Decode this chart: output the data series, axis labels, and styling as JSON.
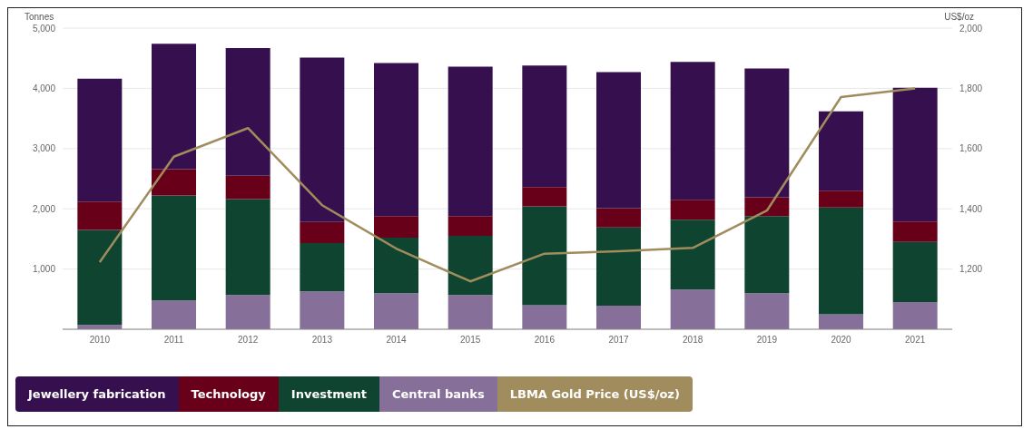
{
  "chart_data": {
    "type": "bar",
    "stacked": true,
    "ylabel": "Tonnes",
    "y2label": "US$/oz",
    "categories": [
      "2010",
      "2011",
      "2012",
      "2013",
      "2014",
      "2015",
      "2016",
      "2017",
      "2018",
      "2019",
      "2020",
      "2021"
    ],
    "series": [
      {
        "name": "Central banks",
        "color": "#86709a",
        "values": [
          70,
          480,
          570,
          630,
          600,
          570,
          400,
          390,
          660,
          600,
          250,
          450
        ]
      },
      {
        "name": "Investment",
        "color": "#0e4430",
        "values": [
          1580,
          1740,
          1590,
          800,
          920,
          980,
          1640,
          1300,
          1160,
          1280,
          1770,
          1000
        ]
      },
      {
        "name": "Technology",
        "color": "#68001a",
        "values": [
          470,
          440,
          390,
          350,
          360,
          330,
          320,
          320,
          330,
          310,
          280,
          340
        ]
      },
      {
        "name": "Jewellery fabrication",
        "color": "#36104e",
        "values": [
          2040,
          2080,
          2120,
          2730,
          2540,
          2480,
          2020,
          2260,
          2290,
          2140,
          1320,
          2220
        ]
      },
      {
        "name": "LBMA Gold Price (US$/oz)",
        "type": "line",
        "axis": "y2",
        "color": "#a08c5c",
        "values": [
          1223,
          1573,
          1668,
          1412,
          1268,
          1159,
          1251,
          1259,
          1270,
          1394,
          1771,
          1800
        ]
      }
    ],
    "ylim": [
      0,
      5000
    ],
    "yticks": [
      {
        "value": 1000,
        "label": "1,000"
      },
      {
        "value": 2000,
        "label": "2,000"
      },
      {
        "value": 3000,
        "label": "3,000"
      },
      {
        "value": 4000,
        "label": "4,000"
      },
      {
        "value": 5000,
        "label": "5,000"
      }
    ],
    "y2lim": [
      1000,
      2000
    ],
    "y2ticks": [
      {
        "value": 1200,
        "label": "1,200"
      },
      {
        "value": 1400,
        "label": "1,400"
      },
      {
        "value": 1600,
        "label": "1,600"
      },
      {
        "value": 1800,
        "label": "1,800"
      },
      {
        "value": 2000,
        "label": "2,000"
      }
    ],
    "grid": "y",
    "legend": "bottom left",
    "marker": "none",
    "line_style": "solid"
  }
}
